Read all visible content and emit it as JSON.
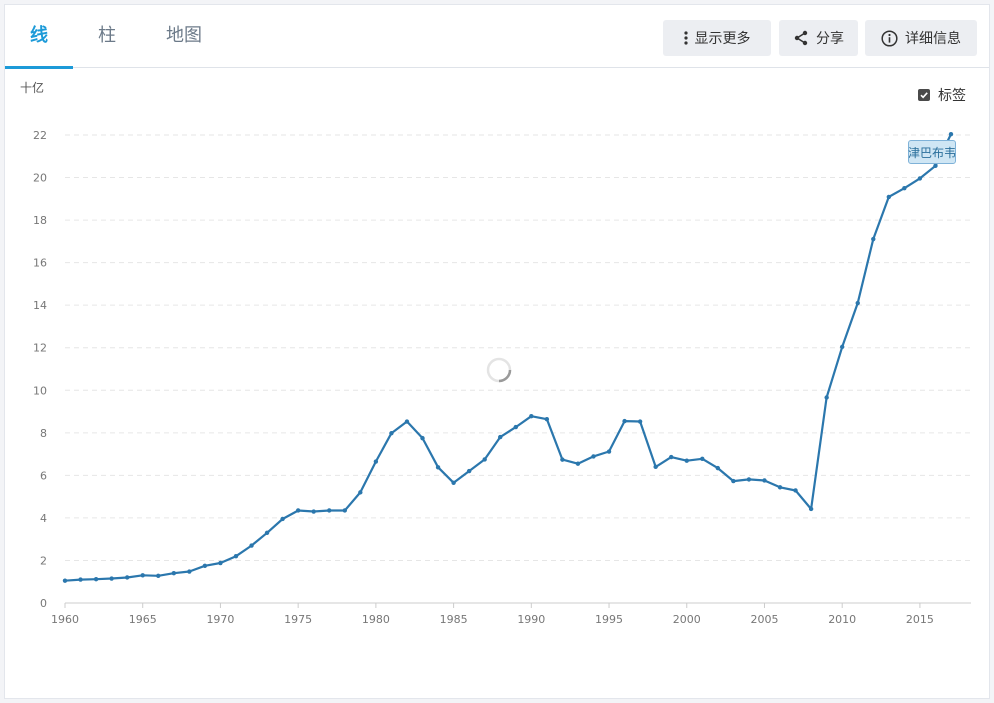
{
  "tabs": [
    {
      "label": "线",
      "active": true
    },
    {
      "label": "柱",
      "active": false
    },
    {
      "label": "地图",
      "active": false
    }
  ],
  "toolbar": {
    "more_label": "显示更多",
    "share_label": "分享",
    "details_label": "详细信息"
  },
  "options": {
    "labels_toggle": "标签",
    "labels_checked": true
  },
  "colors": {
    "accent": "#1c9ad8",
    "series": "#2b77ad"
  },
  "chart_data": {
    "type": "line",
    "ylabel": "十亿",
    "ylim": [
      0,
      22
    ],
    "yticks": [
      0,
      2,
      4,
      6,
      8,
      10,
      12,
      14,
      16,
      18,
      20,
      22
    ],
    "xlim": [
      1960,
      2017
    ],
    "xticks": [
      1960,
      1965,
      1970,
      1975,
      1980,
      1985,
      1990,
      1995,
      2000,
      2005,
      2010,
      2015
    ],
    "grid": true,
    "loading": true,
    "series": [
      {
        "name": "津巴布韦",
        "x": [
          1960,
          1961,
          1962,
          1963,
          1964,
          1965,
          1966,
          1967,
          1968,
          1969,
          1970,
          1971,
          1972,
          1973,
          1974,
          1975,
          1976,
          1977,
          1978,
          1979,
          1980,
          1981,
          1982,
          1983,
          1984,
          1985,
          1986,
          1987,
          1988,
          1989,
          1990,
          1991,
          1992,
          1993,
          1994,
          1995,
          1996,
          1997,
          1998,
          1999,
          2000,
          2001,
          2002,
          2003,
          2004,
          2005,
          2006,
          2007,
          2008,
          2009,
          2010,
          2011,
          2012,
          2013,
          2014,
          2015,
          2016,
          2017
        ],
        "values": [
          1.05,
          1.1,
          1.12,
          1.15,
          1.2,
          1.3,
          1.28,
          1.4,
          1.48,
          1.75,
          1.88,
          2.2,
          2.7,
          3.3,
          3.95,
          4.35,
          4.3,
          4.35,
          4.35,
          5.2,
          6.65,
          7.98,
          8.53,
          7.75,
          6.38,
          5.65,
          6.2,
          6.75,
          7.8,
          8.27,
          8.78,
          8.64,
          6.74,
          6.55,
          6.89,
          7.12,
          8.55,
          8.53,
          6.4,
          6.86,
          6.69,
          6.78,
          6.34,
          5.73,
          5.81,
          5.76,
          5.44,
          5.29,
          4.42,
          9.66,
          12.04,
          14.1,
          17.11,
          19.09,
          19.5,
          19.96,
          20.55,
          22.04
        ]
      }
    ]
  }
}
